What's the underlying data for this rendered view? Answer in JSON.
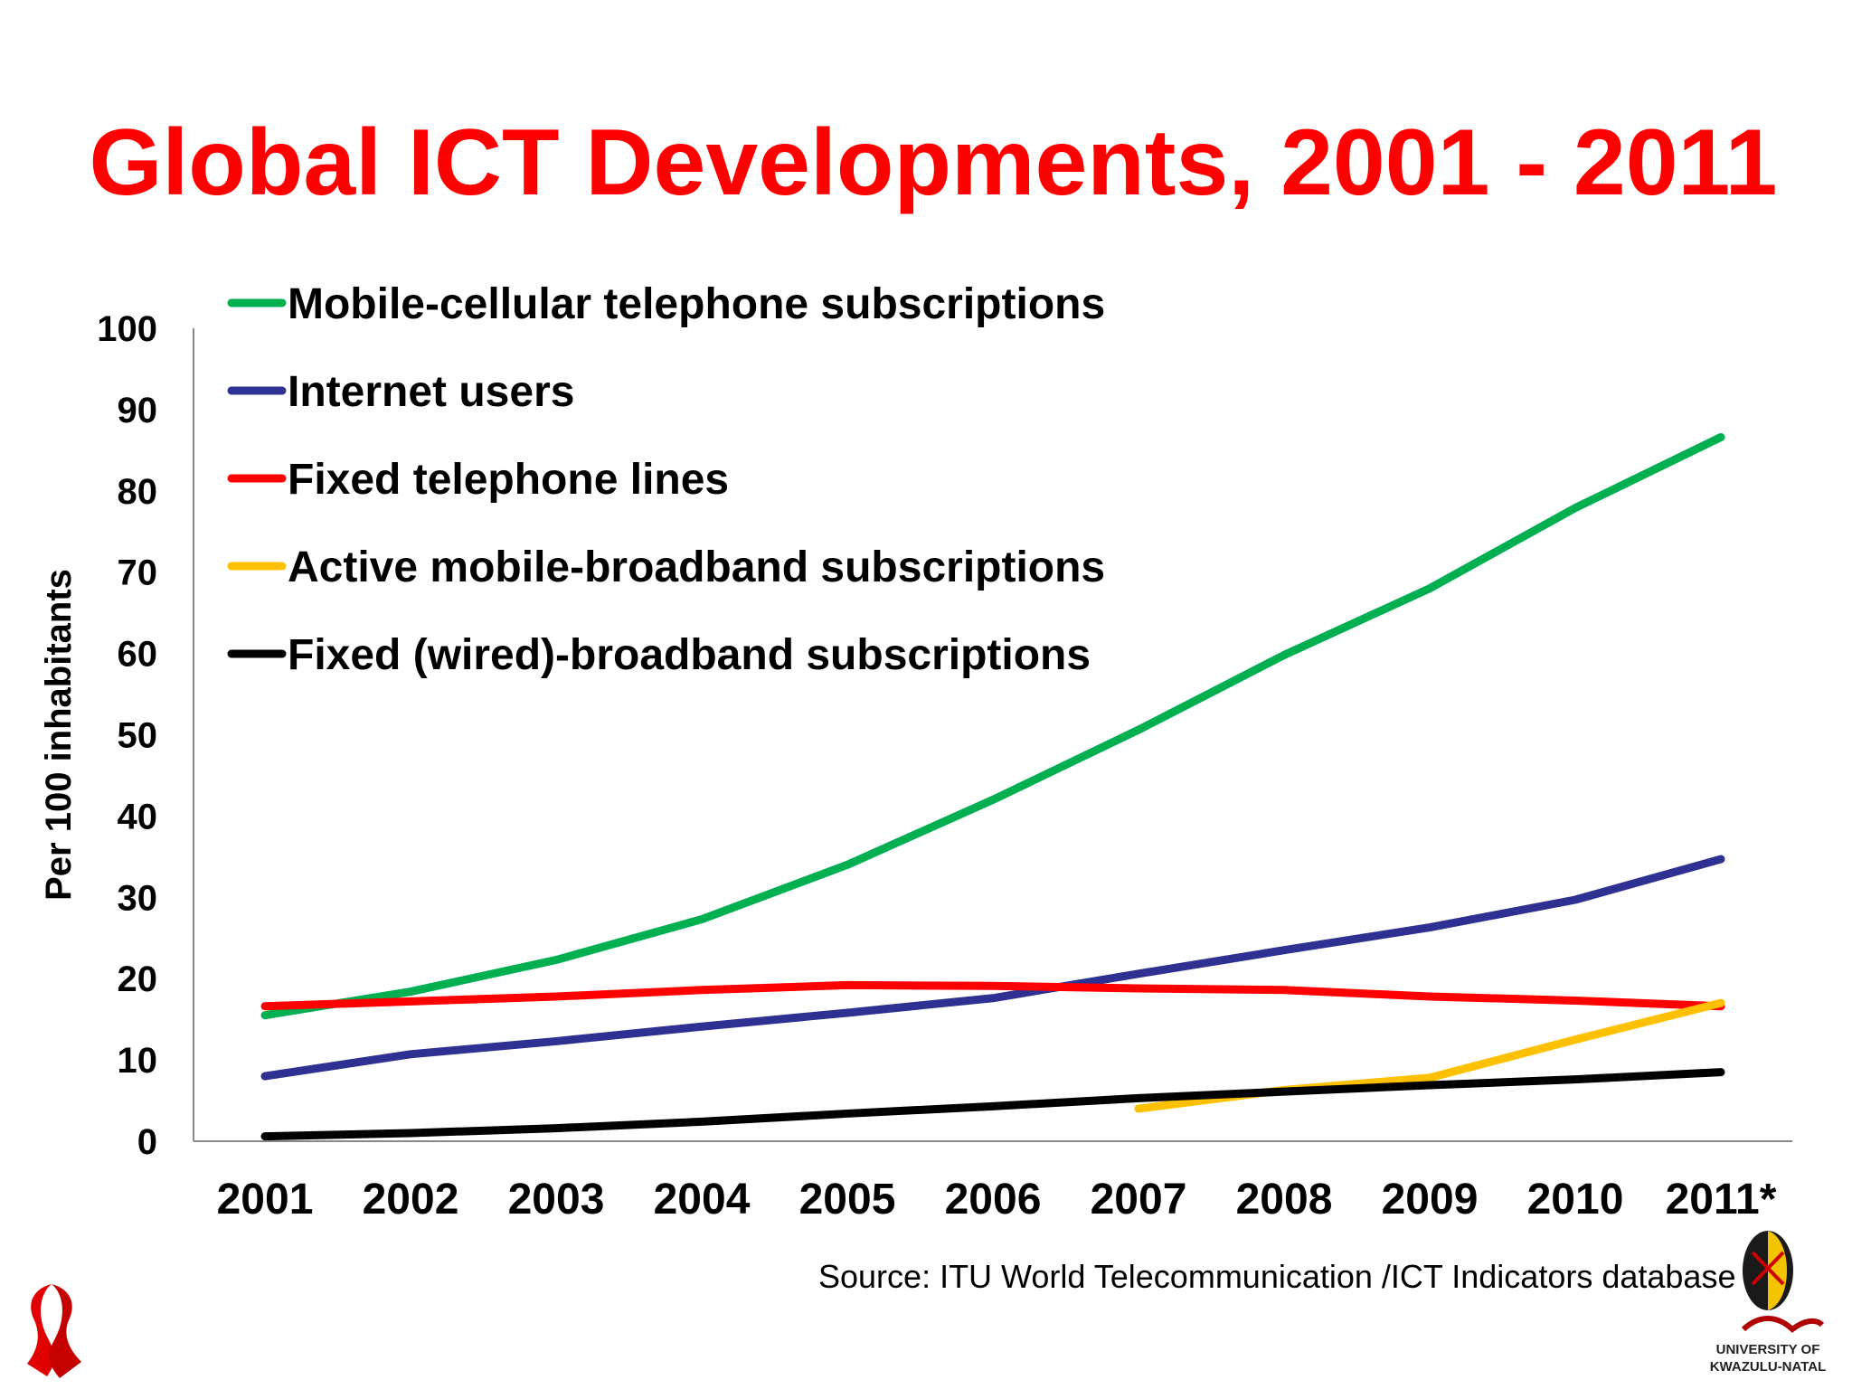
{
  "title": "Global ICT Developments, 2001 - 2011",
  "source": "Source:  ITU World Telecommunication /ICT Indicators database",
  "colors": {
    "title": "#ff0000",
    "background": "#ffffff",
    "axis": "#888888"
  },
  "logos": {
    "ribbon": "red-ribbon-logo",
    "university": "ukzn-shield-logo",
    "university_line1": "UNIVERSITY OF",
    "university_line2": "KWAZULU-NATAL"
  },
  "chart_data": {
    "type": "line",
    "title": "Global ICT Developments, 2001 - 2011",
    "xlabel": "",
    "ylabel": "Per 100 inhabitants",
    "categories": [
      "2001",
      "2002",
      "2003",
      "2004",
      "2005",
      "2006",
      "2007",
      "2008",
      "2009",
      "2010",
      "2011*"
    ],
    "ylim": [
      0,
      100
    ],
    "yticks": [
      0,
      10,
      20,
      30,
      40,
      50,
      60,
      70,
      80,
      90,
      100
    ],
    "grid": false,
    "legend_position": "top-left",
    "series": [
      {
        "name": "Mobile-cellular telephone subscriptions",
        "color": "#00b050",
        "values": [
          15.5,
          18.4,
          22.3,
          27.3,
          34.0,
          42.0,
          50.6,
          59.8,
          68.0,
          77.9,
          86.6
        ]
      },
      {
        "name": "Internet users",
        "color": "#2e3192",
        "values": [
          8.0,
          10.7,
          12.3,
          14.1,
          15.8,
          17.6,
          20.6,
          23.5,
          26.3,
          29.7,
          34.7
        ]
      },
      {
        "name": "Fixed telephone lines",
        "color": "#ff0000",
        "values": [
          16.6,
          17.2,
          17.8,
          18.6,
          19.2,
          19.1,
          18.8,
          18.6,
          17.8,
          17.3,
          16.6
        ]
      },
      {
        "name": "Active mobile-broadband subscriptions",
        "color": "#ffc000",
        "values": [
          null,
          null,
          null,
          null,
          null,
          null,
          4.0,
          6.3,
          7.8,
          12.5,
          17.0
        ]
      },
      {
        "name": "Fixed (wired)-broadband subscriptions",
        "color": "#000000",
        "values": [
          0.6,
          1.0,
          1.6,
          2.4,
          3.4,
          4.3,
          5.3,
          6.1,
          6.9,
          7.6,
          8.5
        ]
      }
    ]
  }
}
